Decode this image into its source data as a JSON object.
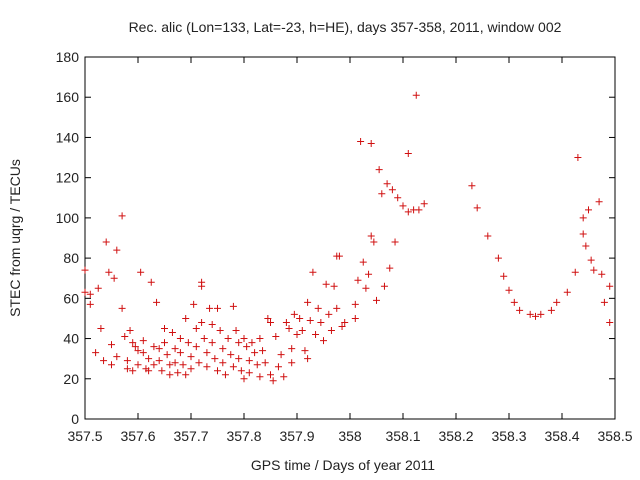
{
  "chart_data": {
    "type": "scatter",
    "title": "Rec. alic (Lon=133, Lat=-23, h=HE), days 357-358, 2011, window 002",
    "xlabel": "GPS time / Days of year 2011",
    "ylabel": "STEC from uqrg / TECUs",
    "xlim": [
      357.5,
      358.5
    ],
    "ylim": [
      0,
      180
    ],
    "xticks": [
      "357.5",
      "357.6",
      "357.7",
      "357.8",
      "357.9",
      "358",
      "358.1",
      "358.2",
      "358.3",
      "358.4",
      "358.5"
    ],
    "yticks": [
      "0",
      "20",
      "40",
      "60",
      "80",
      "100",
      "120",
      "140",
      "160",
      "180"
    ],
    "grid": false,
    "legend": "none",
    "marker": "+",
    "color": "#d01010",
    "points": [
      [
        357.5,
        74
      ],
      [
        357.5,
        63
      ],
      [
        357.51,
        62
      ],
      [
        357.51,
        57
      ],
      [
        357.52,
        33
      ],
      [
        357.525,
        65
      ],
      [
        357.53,
        45
      ],
      [
        357.535,
        29
      ],
      [
        357.54,
        88
      ],
      [
        357.545,
        73
      ],
      [
        357.55,
        37
      ],
      [
        357.55,
        27
      ],
      [
        357.555,
        70
      ],
      [
        357.56,
        84
      ],
      [
        357.56,
        31
      ],
      [
        357.57,
        101
      ],
      [
        357.57,
        55
      ],
      [
        357.575,
        41
      ],
      [
        357.58,
        29
      ],
      [
        357.58,
        25
      ],
      [
        357.585,
        44
      ],
      [
        357.59,
        38
      ],
      [
        357.59,
        24
      ],
      [
        357.595,
        36
      ],
      [
        357.6,
        34
      ],
      [
        357.6,
        27
      ],
      [
        357.605,
        73
      ],
      [
        357.61,
        39
      ],
      [
        357.61,
        33
      ],
      [
        357.615,
        25
      ],
      [
        357.62,
        30
      ],
      [
        357.62,
        24
      ],
      [
        357.625,
        68
      ],
      [
        357.63,
        36
      ],
      [
        357.63,
        27
      ],
      [
        357.635,
        58
      ],
      [
        357.64,
        35
      ],
      [
        357.64,
        29
      ],
      [
        357.645,
        24
      ],
      [
        357.65,
        45
      ],
      [
        357.65,
        38
      ],
      [
        357.655,
        32
      ],
      [
        357.66,
        27
      ],
      [
        357.66,
        22
      ],
      [
        357.665,
        43
      ],
      [
        357.67,
        35
      ],
      [
        357.67,
        28
      ],
      [
        357.675,
        23
      ],
      [
        357.68,
        40
      ],
      [
        357.68,
        33
      ],
      [
        357.685,
        27
      ],
      [
        357.69,
        22
      ],
      [
        357.69,
        50
      ],
      [
        357.695,
        38
      ],
      [
        357.7,
        31
      ],
      [
        357.7,
        25
      ],
      [
        357.705,
        57
      ],
      [
        357.71,
        45
      ],
      [
        357.71,
        36
      ],
      [
        357.715,
        28
      ],
      [
        357.72,
        68
      ],
      [
        357.72,
        66
      ],
      [
        357.72,
        48
      ],
      [
        357.725,
        40
      ],
      [
        357.73,
        33
      ],
      [
        357.73,
        26
      ],
      [
        357.735,
        55
      ],
      [
        357.74,
        47
      ],
      [
        357.74,
        38
      ],
      [
        357.745,
        30
      ],
      [
        357.75,
        24
      ],
      [
        357.75,
        55
      ],
      [
        357.755,
        44
      ],
      [
        357.76,
        35
      ],
      [
        357.76,
        28
      ],
      [
        357.765,
        22
      ],
      [
        357.77,
        40
      ],
      [
        357.775,
        32
      ],
      [
        357.78,
        26
      ],
      [
        357.78,
        56
      ],
      [
        357.785,
        44
      ],
      [
        357.79,
        38
      ],
      [
        357.79,
        30
      ],
      [
        357.795,
        24
      ],
      [
        357.8,
        20
      ],
      [
        357.8,
        40
      ],
      [
        357.805,
        36
      ],
      [
        357.81,
        29
      ],
      [
        357.81,
        23
      ],
      [
        357.815,
        38
      ],
      [
        357.82,
        33
      ],
      [
        357.825,
        27
      ],
      [
        357.83,
        21
      ],
      [
        357.83,
        40
      ],
      [
        357.835,
        34
      ],
      [
        357.84,
        28
      ],
      [
        357.845,
        50
      ],
      [
        357.85,
        48
      ],
      [
        357.85,
        22
      ],
      [
        357.855,
        19
      ],
      [
        357.86,
        41
      ],
      [
        357.865,
        26
      ],
      [
        357.87,
        32
      ],
      [
        357.875,
        21
      ],
      [
        357.88,
        48
      ],
      [
        357.885,
        45
      ],
      [
        357.89,
        35
      ],
      [
        357.89,
        28
      ],
      [
        357.895,
        52
      ],
      [
        357.9,
        42
      ],
      [
        357.905,
        50
      ],
      [
        357.91,
        44
      ],
      [
        357.915,
        34
      ],
      [
        357.92,
        58
      ],
      [
        357.92,
        30
      ],
      [
        357.925,
        49
      ],
      [
        357.93,
        73
      ],
      [
        357.935,
        42
      ],
      [
        357.94,
        55
      ],
      [
        357.945,
        48
      ],
      [
        357.95,
        39
      ],
      [
        357.955,
        67
      ],
      [
        357.96,
        52
      ],
      [
        357.965,
        44
      ],
      [
        357.97,
        66
      ],
      [
        357.975,
        81
      ],
      [
        357.975,
        55
      ],
      [
        357.98,
        81
      ],
      [
        357.985,
        46
      ],
      [
        357.99,
        48
      ],
      [
        358.01,
        57
      ],
      [
        358.01,
        50
      ],
      [
        358.015,
        69
      ],
      [
        358.02,
        138
      ],
      [
        358.025,
        78
      ],
      [
        358.03,
        65
      ],
      [
        358.035,
        72
      ],
      [
        358.04,
        137
      ],
      [
        358.04,
        91
      ],
      [
        358.045,
        88
      ],
      [
        358.05,
        59
      ],
      [
        358.055,
        124
      ],
      [
        358.06,
        112
      ],
      [
        358.065,
        66
      ],
      [
        358.07,
        117
      ],
      [
        358.075,
        75
      ],
      [
        358.08,
        114
      ],
      [
        358.085,
        88
      ],
      [
        358.09,
        110
      ],
      [
        358.1,
        106
      ],
      [
        358.11,
        103
      ],
      [
        358.11,
        132
      ],
      [
        358.12,
        104
      ],
      [
        358.125,
        161
      ],
      [
        358.13,
        104
      ],
      [
        358.14,
        107
      ],
      [
        358.23,
        116
      ],
      [
        358.24,
        105
      ],
      [
        358.26,
        91
      ],
      [
        358.28,
        80
      ],
      [
        358.29,
        71
      ],
      [
        358.3,
        64
      ],
      [
        358.31,
        58
      ],
      [
        358.32,
        54
      ],
      [
        358.34,
        52
      ],
      [
        358.35,
        51
      ],
      [
        358.36,
        52
      ],
      [
        358.38,
        54
      ],
      [
        358.39,
        58
      ],
      [
        358.41,
        63
      ],
      [
        358.425,
        73
      ],
      [
        358.43,
        130
      ],
      [
        358.44,
        100
      ],
      [
        358.44,
        92
      ],
      [
        358.445,
        86
      ],
      [
        358.45,
        104
      ],
      [
        358.455,
        79
      ],
      [
        358.46,
        74
      ],
      [
        358.47,
        108
      ],
      [
        358.475,
        72
      ],
      [
        358.48,
        58
      ],
      [
        358.49,
        66
      ],
      [
        358.49,
        48
      ]
    ]
  }
}
